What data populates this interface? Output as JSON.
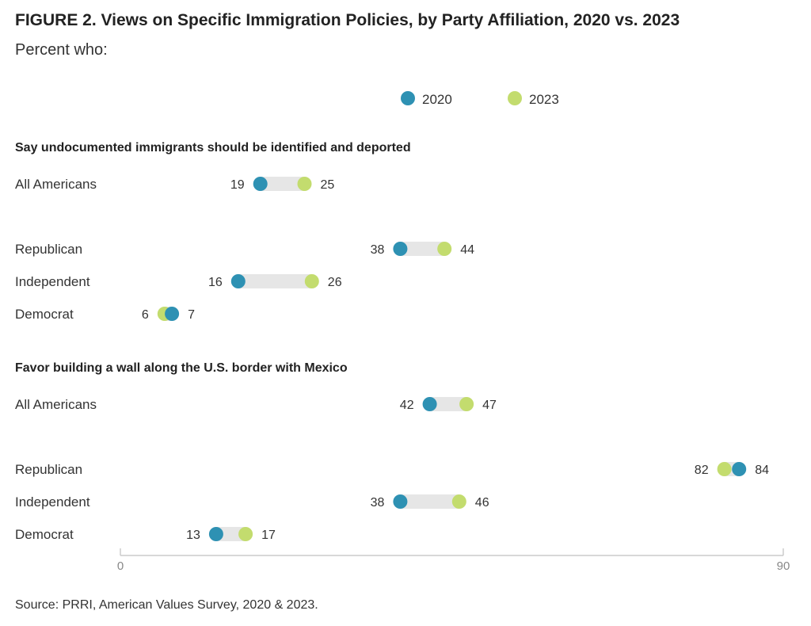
{
  "title": "FIGURE 2.  Views on Specific Immigration Policies, by Party Affiliation, 2020 vs. 2023",
  "subtitle": "Percent who:",
  "source": "Source: PRRI, American Values Survey, 2020 & 2023.",
  "colors": {
    "series_2020": "#2e91b3",
    "series_2023": "#c3dc6e",
    "connector": "#e6e6e6",
    "axis": "#cccccc"
  },
  "chart_data": {
    "type": "dumbbell",
    "xlim": [
      0,
      90
    ],
    "x_ticks": [
      "0",
      "90"
    ],
    "legend": [
      {
        "name": "2020",
        "color": "#2e91b3"
      },
      {
        "name": "2023",
        "color": "#c3dc6e"
      }
    ],
    "legend_position": "top-center",
    "groups": [
      {
        "title": "Say undocumented immigrants should be identified and deported",
        "rows": [
          {
            "label": "All Americans",
            "v2020": 19,
            "v2023": 25
          },
          {
            "label": "Republican",
            "v2020": 38,
            "v2023": 44
          },
          {
            "label": "Independent",
            "v2020": 16,
            "v2023": 26
          },
          {
            "label": "Democrat",
            "v2020": 7,
            "v2023": 6
          }
        ]
      },
      {
        "title": "Favor building a wall along the U.S. border with Mexico",
        "rows": [
          {
            "label": "All Americans",
            "v2020": 42,
            "v2023": 47
          },
          {
            "label": "Republican",
            "v2020": 84,
            "v2023": 82
          },
          {
            "label": "Independent",
            "v2020": 38,
            "v2023": 46
          },
          {
            "label": "Democrat",
            "v2020": 13,
            "v2023": 17
          }
        ]
      }
    ]
  }
}
